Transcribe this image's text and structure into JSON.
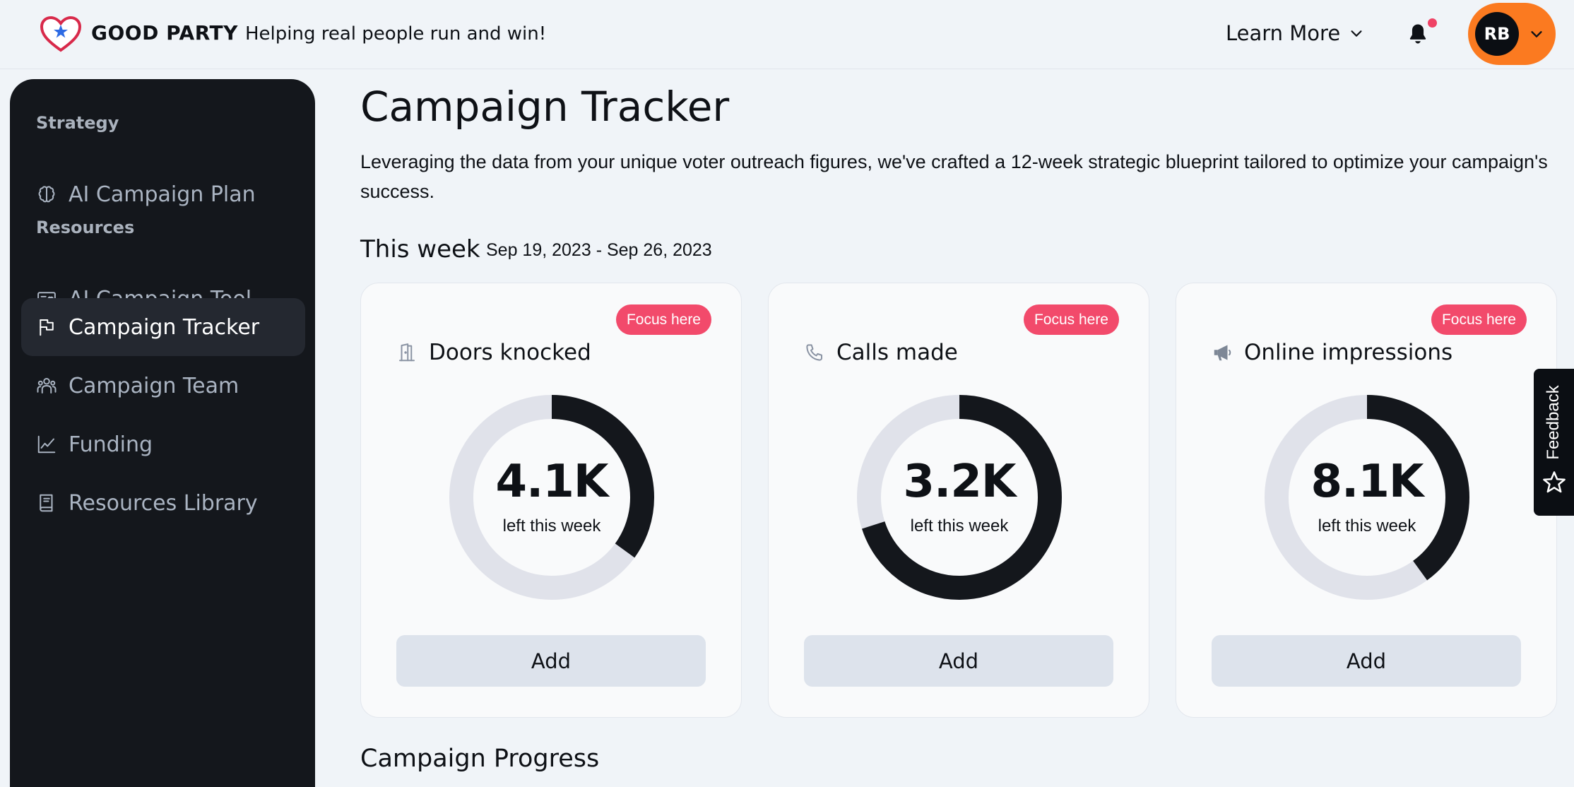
{
  "header": {
    "brand": "GOOD PARTY",
    "tagline": "Helping real people run and win!",
    "learn_more": "Learn More",
    "user_initials": "RB"
  },
  "sidebar": {
    "sections": [
      {
        "label": "Strategy",
        "items": [
          {
            "label": "AI Campaign Plan",
            "icon": "brain-icon"
          }
        ]
      },
      {
        "label": "Resources",
        "items": [
          {
            "label": "AI Campaign Tool",
            "icon": "id-card-icon"
          },
          {
            "label": "Campaign Tracker",
            "icon": "flag-icon",
            "active": true
          },
          {
            "label": "Campaign Team",
            "icon": "team-icon"
          },
          {
            "label": "Funding",
            "icon": "chart-line-icon"
          },
          {
            "label": "Resources Library",
            "icon": "book-icon"
          }
        ]
      }
    ]
  },
  "main": {
    "title": "Campaign Tracker",
    "description": "Leveraging the data from your unique voter outreach figures, we've crafted a 12-week strategic blueprint tailored to optimize your campaign's success.",
    "week_title": "This week",
    "week_range": "Sep 19, 2023 - Sep 26, 2023",
    "progress_title": "Campaign Progress",
    "cards": [
      {
        "title": "Doors knocked",
        "icon": "door-icon",
        "badge": "Focus here",
        "value": "4.1K",
        "subtitle": "left this week",
        "progress": 0.35,
        "button": "Add"
      },
      {
        "title": "Calls made",
        "icon": "phone-icon",
        "badge": "Focus here",
        "value": "3.2K",
        "subtitle": "left this week",
        "progress": 0.7,
        "button": "Add"
      },
      {
        "title": "Online impressions",
        "icon": "megaphone-icon",
        "badge": "Focus here",
        "value": "8.1K",
        "subtitle": "left this week",
        "progress": 0.4,
        "button": "Add"
      }
    ]
  },
  "feedback": {
    "label": "Feedback"
  },
  "colors": {
    "accent": "#fb7a20",
    "badge": "#f24a6b",
    "sidebar_bg": "#14171c",
    "donut_fill": "#14171c",
    "donut_track": "#e0e2ea"
  }
}
